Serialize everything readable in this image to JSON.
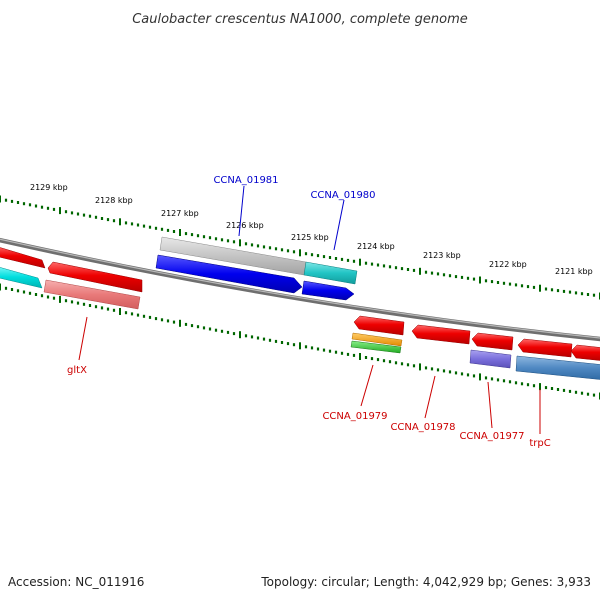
{
  "title": "Caulobacter crescentus NA1000, complete genome",
  "footer": {
    "accession": "Accession: NC_011916",
    "summary": "Topology: circular; Length: 4,042,929 bp; Genes: 3,933"
  },
  "ticks": [
    "2129 kbp",
    "2128 kbp",
    "2127 kbp",
    "2126 kbp",
    "2125 kbp",
    "2124 kbp",
    "2123 kbp",
    "2122 kbp",
    "2121 kbp"
  ],
  "labels": {
    "top": [
      "CCNA_01981",
      "CCNA_01980"
    ],
    "bottom": [
      "gltX",
      "CCNA_01979",
      "CCNA_01978",
      "CCNA_01977",
      "trpC"
    ]
  },
  "colors": {
    "label_top": "#0000cc",
    "label_bottom": "#cc0000",
    "tick_green": "#006600",
    "backbone": "#888888"
  }
}
